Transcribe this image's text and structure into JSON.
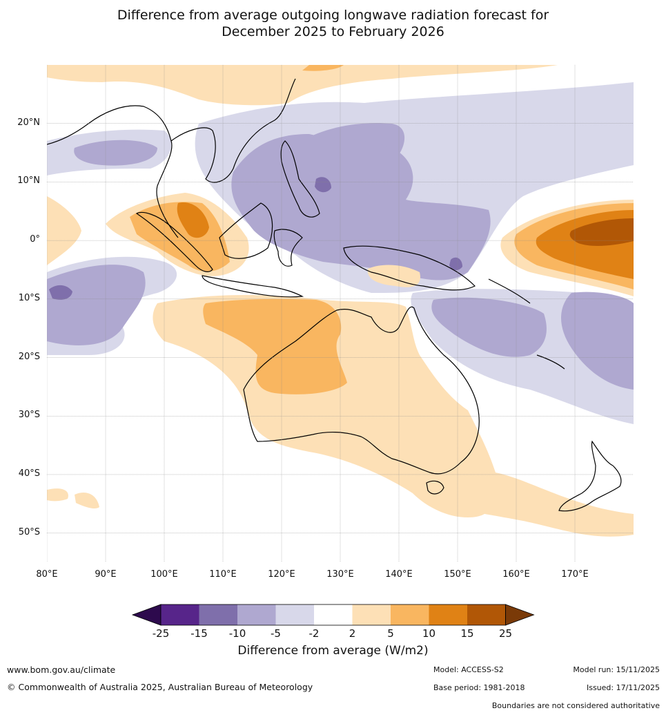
{
  "title": {
    "line1": "Difference from average outgoing longwave radiation forecast for",
    "line2": "December 2025 to February 2026"
  },
  "map": {
    "lat_labels": [
      "20°N",
      "10°N",
      "0°",
      "10°S",
      "20°S",
      "30°S",
      "40°S",
      "50°S"
    ],
    "lat_values": [
      20,
      10,
      0,
      -10,
      -20,
      -30,
      -40,
      -50
    ],
    "lon_labels": [
      "80°E",
      "90°E",
      "100°E",
      "110°E",
      "120°E",
      "130°E",
      "140°E",
      "150°E",
      "160°E",
      "170°E"
    ],
    "lon_values": [
      80,
      90,
      100,
      110,
      120,
      130,
      140,
      150,
      160,
      170
    ],
    "lon_range": [
      80,
      180
    ],
    "lat_range": [
      -55,
      30
    ]
  },
  "colorbar": {
    "ticks": [
      "-25",
      "-15",
      "-10",
      "-5",
      "-2",
      "2",
      "5",
      "10",
      "15",
      "25"
    ],
    "colors": [
      "#2d0a4d",
      "#57258a",
      "#7f6fab",
      "#afa8d0",
      "#d8d8ea",
      "#ffffff",
      "#fde0b6",
      "#f9b660",
      "#e08215",
      "#b15706",
      "#7a3a08"
    ],
    "label": "Difference from average (W/m2)"
  },
  "footer": {
    "website": "www.bom.gov.au/climate",
    "copyright": "© Commonwealth of Australia 2025, Australian Bureau of Meteorology",
    "model": "Model: ACCESS-S2",
    "base_period": "Base period: 1981-2018",
    "model_run": "Model run: 15/11/2025",
    "issued": "Issued: 17/11/2025",
    "disclaimer": "Boundaries are not considered authoritative"
  }
}
